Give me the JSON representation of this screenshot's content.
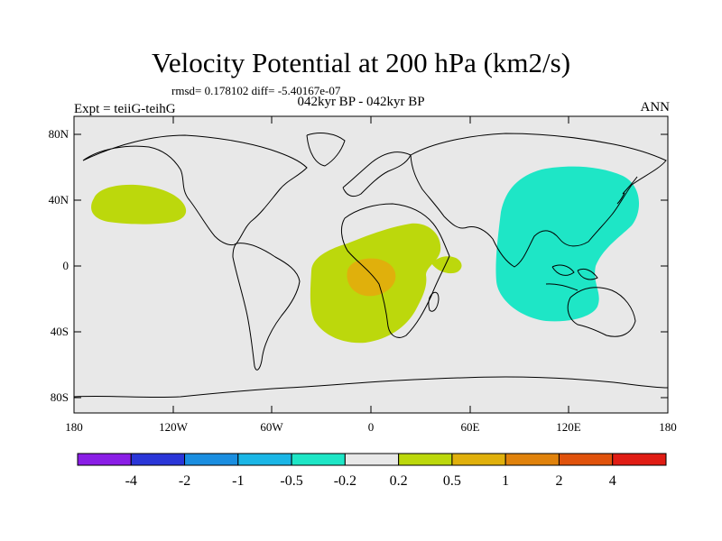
{
  "title": "Velocity Potential at 200 hPa (km2/s)",
  "stats": "rmsd= 0.178102 diff= -5.40167e-07",
  "left_label": "Expt = teiiG-teihG",
  "center_label": "042kyr BP - 042kyr BP",
  "right_label": "ANN",
  "lat_labels": [
    "80N",
    "40N",
    "0",
    "40S",
    "80S"
  ],
  "lon_labels": [
    "180",
    "120W",
    "60W",
    "0",
    "60E",
    "120E",
    "180"
  ],
  "colorbar": {
    "labels": [
      "-4",
      "-2",
      "-1",
      "-0.5",
      "-0.2",
      "0.2",
      "0.5",
      "1",
      "2",
      "4"
    ],
    "colors": [
      "#8a1ee6",
      "#2a36d8",
      "#1a8ee0",
      "#1ab6e6",
      "#1ee6c6",
      "#e8e8e8",
      "#bcd80c",
      "#e0b00c",
      "#e0820c",
      "#e0520c",
      "#e01c14"
    ]
  },
  "colors": {
    "map_background": "#e8e8e8",
    "positive_weak": "#bcd80c",
    "positive_mid": "#e0b00c",
    "negative_weak": "#1ee6c6"
  }
}
